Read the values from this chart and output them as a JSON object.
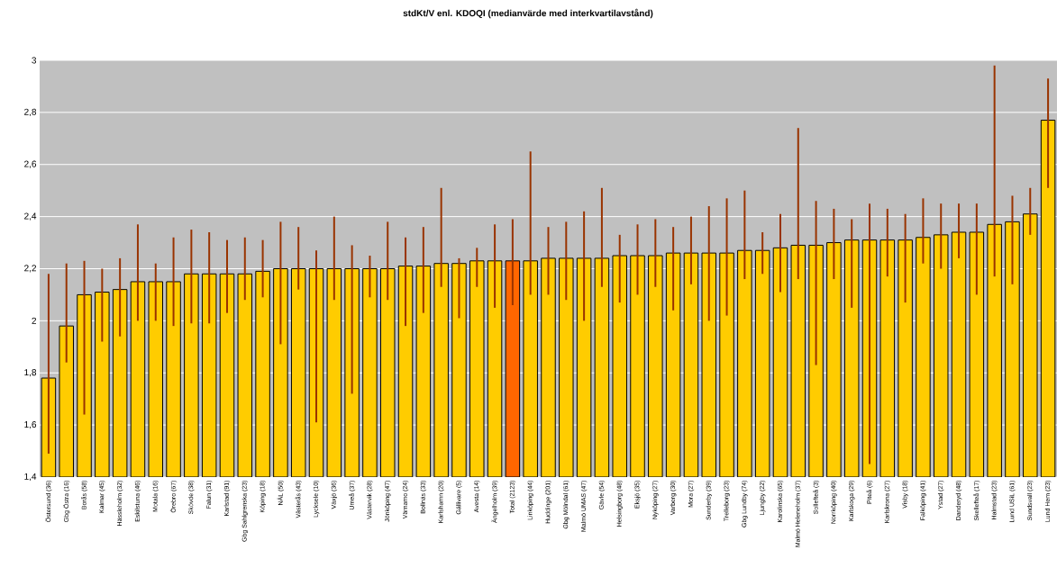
{
  "chart_data": {
    "type": "bar",
    "title": "stdKt/V enl. KDOQI (medianvärde med interkvartilavstånd)",
    "categories": [
      "Östersund (36)",
      "Gbg Östra (16)",
      "Borås (58)",
      "Kalmar (45)",
      "Hässleholm (32)",
      "Eskilstuna (46)",
      "Motala (16)",
      "Örebro (67)",
      "Skövde (38)",
      "Falun (31)",
      "Karlstad (91)",
      "Gbg Sahlgrenska (23)",
      "Köping (18)",
      "NÄL (50)",
      "Västerås (43)",
      "Lycksele (10)",
      "Växjö (36)",
      "Umeå (37)",
      "Västervik (28)",
      "Jönköping (47)",
      "Värnamo (24)",
      "Bollnäs (33)",
      "Karlshamn (20)",
      "Gällivare (5)",
      "Avesta (14)",
      "Ängelholm (39)",
      "Total (2123)",
      "Linköping (44)",
      "Huddinge (201)",
      "Gbg Mölndal (61)",
      "Malmö UMAS (47)",
      "Gävle (54)",
      "Helsingborg (48)",
      "Eksjö (35)",
      "Nyköping (27)",
      "Varberg (30)",
      "Mora (27)",
      "Sunderby (39)",
      "Trelleborg (23)",
      "Gbg Lundby (74)",
      "Ljungby (22)",
      "Karolinska (65)",
      "Malmö Heleneholm (37)",
      "Sollefteå (3)",
      "Norrköping (40)",
      "Karlskoga (29)",
      "Piteå (6)",
      "Karlskrona (27)",
      "Visby (18)",
      "Falköping (41)",
      "Ystad (27)",
      "Danderyd (48)",
      "Skellefteå (17)",
      "Halmstad (23)",
      "Lund USiL (61)",
      "Sundsvall (23)",
      "Lund Hem (23)"
    ],
    "values": [
      1.78,
      1.98,
      2.1,
      2.11,
      2.12,
      2.15,
      2.15,
      2.15,
      2.18,
      2.18,
      2.18,
      2.18,
      2.19,
      2.2,
      2.2,
      2.2,
      2.2,
      2.2,
      2.2,
      2.2,
      2.21,
      2.21,
      2.22,
      2.22,
      2.23,
      2.23,
      2.23,
      2.23,
      2.24,
      2.24,
      2.24,
      2.24,
      2.25,
      2.25,
      2.25,
      2.26,
      2.26,
      2.26,
      2.26,
      2.27,
      2.27,
      2.28,
      2.29,
      2.29,
      2.3,
      2.31,
      2.31,
      2.31,
      2.31,
      2.32,
      2.33,
      2.34,
      2.34,
      2.37,
      2.38,
      2.41,
      2.77
    ],
    "errors": [
      [
        1.49,
        2.18
      ],
      [
        1.84,
        2.22
      ],
      [
        1.64,
        2.23
      ],
      [
        1.92,
        2.2
      ],
      [
        1.94,
        2.24
      ],
      [
        2.0,
        2.37
      ],
      [
        2.0,
        2.22
      ],
      [
        1.98,
        2.32
      ],
      [
        1.99,
        2.35
      ],
      [
        1.99,
        2.34
      ],
      [
        2.03,
        2.31
      ],
      [
        2.08,
        2.32
      ],
      [
        2.09,
        2.31
      ],
      [
        1.91,
        2.38
      ],
      [
        2.12,
        2.36
      ],
      [
        1.61,
        2.27
      ],
      [
        2.08,
        2.4
      ],
      [
        1.72,
        2.29
      ],
      [
        2.09,
        2.25
      ],
      [
        2.08,
        2.38
      ],
      [
        1.98,
        2.32
      ],
      [
        2.03,
        2.36
      ],
      [
        2.13,
        2.51
      ],
      [
        2.01,
        2.24
      ],
      [
        2.13,
        2.28
      ],
      [
        2.05,
        2.37
      ],
      [
        2.06,
        2.39
      ],
      [
        2.1,
        2.65
      ],
      [
        2.1,
        2.36
      ],
      [
        2.08,
        2.38
      ],
      [
        2.0,
        2.42
      ],
      [
        2.13,
        2.51
      ],
      [
        2.07,
        2.33
      ],
      [
        2.1,
        2.37
      ],
      [
        2.13,
        2.39
      ],
      [
        2.04,
        2.36
      ],
      [
        2.14,
        2.4
      ],
      [
        2.0,
        2.44
      ],
      [
        2.02,
        2.47
      ],
      [
        2.16,
        2.5
      ],
      [
        2.18,
        2.34
      ],
      [
        2.11,
        2.41
      ],
      [
        2.16,
        2.74
      ],
      [
        1.83,
        2.46
      ],
      [
        2.16,
        2.43
      ],
      [
        2.05,
        2.39
      ],
      [
        1.45,
        2.45
      ],
      [
        2.17,
        2.43
      ],
      [
        2.07,
        2.41
      ],
      [
        2.22,
        2.47
      ],
      [
        2.2,
        2.45
      ],
      [
        2.24,
        2.45
      ],
      [
        2.1,
        2.45
      ],
      [
        2.17,
        2.98
      ],
      [
        2.14,
        2.48
      ],
      [
        2.33,
        2.51
      ],
      [
        2.51,
        2.93
      ]
    ],
    "colors": [
      "#ffcc00",
      "#ffcc00",
      "#ffcc00",
      "#ffcc00",
      "#ffcc00",
      "#ffcc00",
      "#ffcc00",
      "#ffcc00",
      "#ffcc00",
      "#ffcc00",
      "#ffcc00",
      "#ffcc00",
      "#ffcc00",
      "#ffcc00",
      "#ffcc00",
      "#ffcc00",
      "#ffcc00",
      "#ffcc00",
      "#ffcc00",
      "#ffcc00",
      "#ffcc00",
      "#ffcc00",
      "#ffcc00",
      "#ffcc00",
      "#ffcc00",
      "#ffcc00",
      "#ff6600",
      "#ffcc00",
      "#ffcc00",
      "#ffcc00",
      "#ffcc00",
      "#ffcc00",
      "#ffcc00",
      "#ffcc00",
      "#ffcc00",
      "#ffcc00",
      "#ffcc00",
      "#ffcc00",
      "#ffcc00",
      "#ffcc00",
      "#ffcc00",
      "#ffcc00",
      "#ffcc00",
      "#ffcc00",
      "#ffcc00",
      "#ffcc00",
      "#ffcc00",
      "#ffcc00",
      "#ffcc00",
      "#ffcc00",
      "#ffcc00",
      "#ffcc00",
      "#ffcc00",
      "#ffcc00",
      "#ffcc00",
      "#ffcc00",
      "#ffcc00"
    ],
    "ylim": [
      1.4,
      3
    ],
    "yticks": [
      {
        "value": 1.4,
        "label": "1,4"
      },
      {
        "value": 1.6,
        "label": "1,6"
      },
      {
        "value": 1.8,
        "label": "1,8"
      },
      2,
      {
        "value": 2.2,
        "label": "2,2"
      },
      {
        "value": 2.4,
        "label": "2,4"
      },
      {
        "value": 2.6,
        "label": "2,6"
      },
      {
        "value": 2.8,
        "label": "2,8"
      },
      3
    ],
    "grid": "y"
  }
}
